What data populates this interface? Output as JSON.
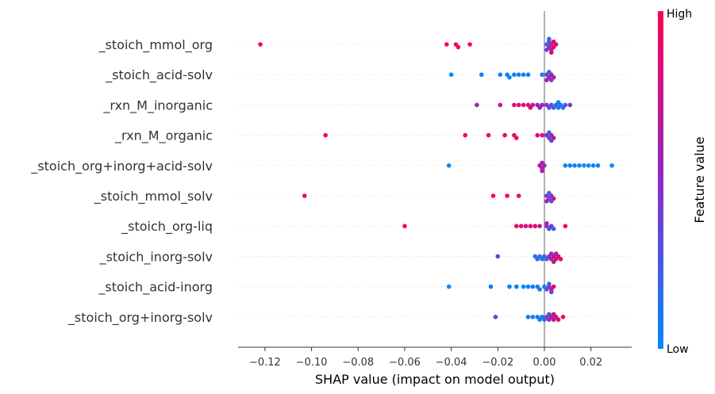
{
  "chart_data": {
    "type": "scatter",
    "subtype": "shap-beeswarm",
    "xlabel": "SHAP value (impact on model output)",
    "xlim": [
      -0.13,
      0.038
    ],
    "x_ticks": [
      -0.12,
      -0.1,
      -0.08,
      -0.06,
      -0.04,
      -0.02,
      0.0,
      0.02
    ],
    "x_tick_labels": [
      "−0.12",
      "−0.10",
      "−0.08",
      "−0.06",
      "−0.04",
      "−0.02",
      "0.00",
      "0.02"
    ],
    "colorbar": {
      "title": "Feature value",
      "high_label": "High",
      "low_label": "Low",
      "low_color": "#008bfb",
      "mid_color": "#8e2ac4",
      "high_color": "#ff0052"
    },
    "zero_line": 0,
    "features": [
      {
        "name": "_stoich_mmol_org",
        "points": [
          [
            -0.122,
            1
          ],
          [
            -0.042,
            1
          ],
          [
            -0.038,
            1
          ],
          [
            -0.037,
            0.95
          ],
          [
            -0.032,
            1
          ],
          [
            0.001,
            0.2
          ],
          [
            0.002,
            0.5
          ],
          [
            0.003,
            0.8
          ],
          [
            0.004,
            1
          ],
          [
            0.002,
            0.3
          ],
          [
            0.003,
            0.6
          ],
          [
            0.004,
            0.9
          ],
          [
            0.001,
            0.4
          ],
          [
            0.005,
            0.7
          ],
          [
            0.002,
            0.2
          ],
          [
            0.003,
            0.9
          ]
        ]
      },
      {
        "name": "_stoich_acid-solv",
        "points": [
          [
            -0.04,
            0
          ],
          [
            -0.027,
            0.05
          ],
          [
            -0.019,
            0.05
          ],
          [
            -0.016,
            0.05
          ],
          [
            -0.015,
            0
          ],
          [
            -0.013,
            0.1
          ],
          [
            -0.011,
            0.05
          ],
          [
            -0.009,
            0
          ],
          [
            -0.007,
            0.05
          ],
          [
            -0.001,
            0.1
          ],
          [
            0.001,
            0.3
          ],
          [
            0.002,
            0.5
          ],
          [
            0.003,
            0.8
          ],
          [
            0.004,
            0.6
          ],
          [
            0.002,
            0.2
          ],
          [
            0.001,
            0.7
          ],
          [
            0.003,
            0.4
          ]
        ]
      },
      {
        "name": "_rxn_M_inorganic",
        "points": [
          [
            -0.029,
            0.6
          ],
          [
            -0.019,
            0.75
          ],
          [
            -0.013,
            0.8
          ],
          [
            -0.011,
            0.8
          ],
          [
            -0.009,
            0.9
          ],
          [
            -0.007,
            0.85
          ],
          [
            -0.006,
            0.85
          ],
          [
            -0.005,
            0.7
          ],
          [
            -0.003,
            0.6
          ],
          [
            -0.001,
            0.5
          ],
          [
            0.001,
            0.45
          ],
          [
            0.003,
            0.35
          ],
          [
            0.005,
            0.2
          ],
          [
            0.006,
            0.1
          ],
          [
            0.007,
            0.05
          ],
          [
            0.008,
            0.1
          ],
          [
            0.009,
            0.3
          ],
          [
            0.011,
            0.4
          ],
          [
            0.002,
            0.3
          ],
          [
            0.004,
            0.2
          ],
          [
            -0.002,
            0.55
          ],
          [
            0.006,
            0.05
          ]
        ]
      },
      {
        "name": "_rxn_M_organic",
        "points": [
          [
            -0.094,
            1
          ],
          [
            -0.034,
            1
          ],
          [
            -0.024,
            1
          ],
          [
            -0.017,
            0.9
          ],
          [
            -0.013,
            0.85
          ],
          [
            -0.012,
            1
          ],
          [
            -0.003,
            0.9
          ],
          [
            -0.001,
            0.8
          ],
          [
            0.001,
            0.5
          ],
          [
            0.002,
            0.3
          ],
          [
            0.003,
            0.6
          ],
          [
            0.004,
            0.7
          ],
          [
            0.002,
            0.2
          ],
          [
            0.003,
            0.4
          ]
        ]
      },
      {
        "name": "_stoich_org+inorg+acid-solv",
        "points": [
          [
            -0.041,
            0
          ],
          [
            -0.002,
            0.75
          ],
          [
            -0.001,
            0.7
          ],
          [
            -0.001,
            0.6
          ],
          [
            0.0,
            0.5
          ],
          [
            -0.001,
            0.55
          ],
          [
            0.009,
            0.05
          ],
          [
            0.011,
            0.05
          ],
          [
            0.013,
            0.05
          ],
          [
            0.015,
            0.05
          ],
          [
            0.017,
            0
          ],
          [
            0.019,
            0
          ],
          [
            0.021,
            0.05
          ],
          [
            0.023,
            0.05
          ],
          [
            0.029,
            0
          ]
        ]
      },
      {
        "name": "_stoich_mmol_solv",
        "points": [
          [
            -0.103,
            1
          ],
          [
            -0.022,
            0.95
          ],
          [
            -0.016,
            1
          ],
          [
            -0.011,
            0.9
          ],
          [
            0.001,
            0.5
          ],
          [
            0.002,
            0.3
          ],
          [
            0.003,
            0.6
          ],
          [
            0.004,
            0.7
          ],
          [
            0.002,
            0.2
          ],
          [
            0.003,
            0.4
          ],
          [
            0.001,
            0.6
          ]
        ]
      },
      {
        "name": "_stoich_org-liq",
        "points": [
          [
            -0.06,
            1
          ],
          [
            -0.012,
            0.9
          ],
          [
            -0.01,
            0.85
          ],
          [
            -0.008,
            0.8
          ],
          [
            -0.006,
            0.85
          ],
          [
            -0.004,
            0.9
          ],
          [
            -0.002,
            0.7
          ],
          [
            0.001,
            0.5
          ],
          [
            0.002,
            0.3
          ],
          [
            0.003,
            0.4
          ],
          [
            0.004,
            0.2
          ],
          [
            0.001,
            0.6
          ],
          [
            0.009,
            0.95
          ]
        ]
      },
      {
        "name": "_stoich_inorg-solv",
        "points": [
          [
            -0.02,
            0.4
          ],
          [
            -0.004,
            0.1
          ],
          [
            -0.003,
            0.2
          ],
          [
            -0.002,
            0.15
          ],
          [
            -0.001,
            0.1
          ],
          [
            0.0,
            0.2
          ],
          [
            0.001,
            0.3
          ],
          [
            0.002,
            0.5
          ],
          [
            0.003,
            0.6
          ],
          [
            0.004,
            0.7
          ],
          [
            0.005,
            0.8
          ],
          [
            0.006,
            0.85
          ],
          [
            0.007,
            0.9
          ],
          [
            0.003,
            0.55
          ],
          [
            0.004,
            0.75
          ],
          [
            0.005,
            0.65
          ]
        ]
      },
      {
        "name": "_stoich_acid-inorg",
        "points": [
          [
            -0.041,
            0
          ],
          [
            -0.023,
            0.05
          ],
          [
            -0.015,
            0.05
          ],
          [
            -0.012,
            0.05
          ],
          [
            -0.009,
            0
          ],
          [
            -0.007,
            0.05
          ],
          [
            -0.005,
            0.1
          ],
          [
            -0.003,
            0.05
          ],
          [
            -0.002,
            0.1
          ],
          [
            0.0,
            0.1
          ],
          [
            0.001,
            0.3
          ],
          [
            0.002,
            0.5
          ],
          [
            0.003,
            0.7
          ],
          [
            0.004,
            0.9
          ],
          [
            0.002,
            0.2
          ],
          [
            0.003,
            0.4
          ]
        ]
      },
      {
        "name": "_stoich_org+inorg-solv",
        "points": [
          [
            -0.021,
            0.4
          ],
          [
            -0.007,
            0.1
          ],
          [
            -0.005,
            0.05
          ],
          [
            -0.003,
            0.1
          ],
          [
            -0.002,
            0.05
          ],
          [
            -0.001,
            0.1
          ],
          [
            0.0,
            0.2
          ],
          [
            0.001,
            0.4
          ],
          [
            0.002,
            0.5
          ],
          [
            0.003,
            0.6
          ],
          [
            0.004,
            0.8
          ],
          [
            0.005,
            0.7
          ],
          [
            0.006,
            0.85
          ],
          [
            0.008,
            0.9
          ],
          [
            0.002,
            0.3
          ],
          [
            0.004,
            0.9
          ]
        ]
      }
    ]
  }
}
